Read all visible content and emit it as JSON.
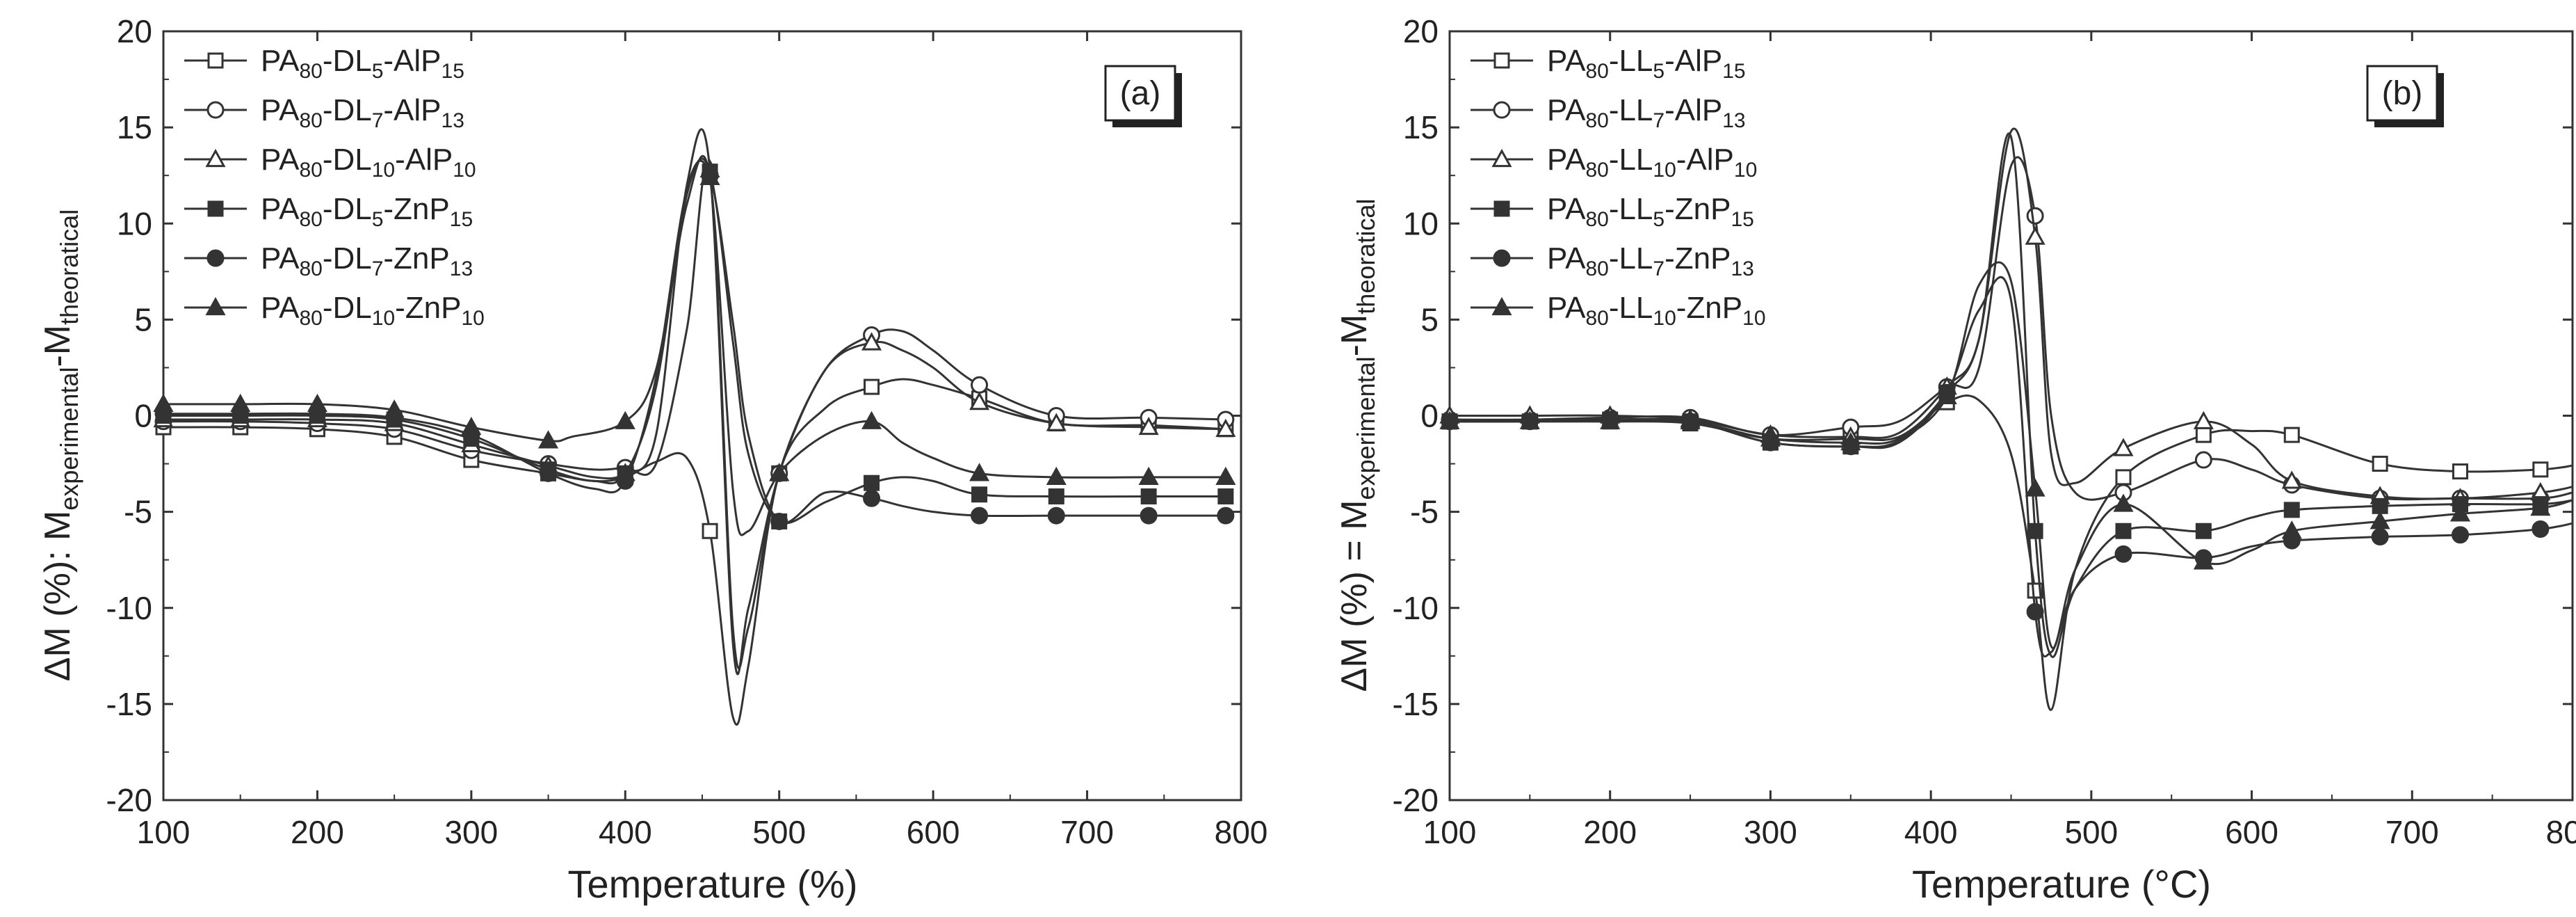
{
  "chart_data": [
    {
      "type": "line",
      "panel_label": "(a)",
      "xlabel": "Temperature (%)",
      "ylabel_parts": {
        "prefix": "ΔM (%): M",
        "sub1": "experimental",
        "mid": "-M",
        "sub2": "theoratical"
      },
      "xlim": [
        100,
        800
      ],
      "ylim": [
        -20,
        20
      ],
      "xticks": [
        100,
        200,
        300,
        400,
        500,
        600,
        700,
        800
      ],
      "yticks": [
        -20,
        -15,
        -10,
        -5,
        0,
        5,
        10,
        15,
        20
      ],
      "grid": false,
      "legend_position": "top-left",
      "series": [
        {
          "legend": {
            "t1": "PA",
            "s1": "80",
            "t2": "-DL",
            "s2": "5",
            "t3": "-AlP",
            "s3": "15"
          },
          "marker": "square-open",
          "x": [
            100,
            150,
            200,
            250,
            300,
            350,
            380,
            400,
            420,
            440,
            455,
            470,
            480,
            500,
            530,
            560,
            580,
            600,
            630,
            680,
            740,
            790
          ],
          "y": [
            -0.6,
            -0.6,
            -0.7,
            -1.1,
            -2.3,
            -3.0,
            -3.4,
            -3.2,
            -2.4,
            -2.2,
            -6.0,
            -15.7,
            -13.0,
            -3.0,
            0.4,
            1.5,
            1.9,
            1.6,
            0.9,
            -0.4,
            -0.5,
            -0.7
          ]
        },
        {
          "legend": {
            "t1": "PA",
            "s1": "80",
            "t2": "-DL",
            "s2": "7",
            "t3": "-AlP",
            "s3": "13"
          },
          "marker": "circle-open",
          "x": [
            100,
            150,
            200,
            250,
            300,
            350,
            380,
            400,
            420,
            440,
            455,
            470,
            480,
            500,
            530,
            560,
            580,
            600,
            630,
            680,
            740,
            790
          ],
          "y": [
            -0.3,
            -0.3,
            -0.4,
            -0.7,
            -1.8,
            -2.5,
            -2.8,
            -2.7,
            -2.5,
            4.5,
            12.5,
            -11.1,
            -11.0,
            -3.0,
            2.4,
            4.2,
            4.4,
            3.4,
            1.6,
            0.0,
            -0.1,
            -0.2
          ]
        },
        {
          "legend": {
            "t1": "PA",
            "s1": "80",
            "t2": "-DL",
            "s2": "10",
            "t3": "-AlP",
            "s3": "10"
          },
          "marker": "triangle-open",
          "x": [
            100,
            150,
            200,
            250,
            300,
            350,
            380,
            400,
            420,
            440,
            455,
            470,
            480,
            500,
            530,
            560,
            580,
            600,
            630,
            680,
            740,
            790
          ],
          "y": [
            -0.2,
            -0.2,
            -0.2,
            -0.4,
            -1.5,
            -2.6,
            -3.2,
            -3.0,
            -1.0,
            12.0,
            12.8,
            -11.9,
            -10.0,
            -3.0,
            2.4,
            3.8,
            3.4,
            2.5,
            0.7,
            -0.4,
            -0.6,
            -0.7
          ]
        },
        {
          "legend": {
            "t1": "PA",
            "s1": "80",
            "t2": "-DL",
            "s2": "5",
            "t3": "-ZnP",
            "s3": "15"
          },
          "marker": "square-filled",
          "x": [
            100,
            150,
            200,
            250,
            300,
            350,
            380,
            400,
            420,
            440,
            455,
            470,
            480,
            500,
            530,
            560,
            580,
            600,
            630,
            680,
            740,
            790
          ],
          "y": [
            0.0,
            0.0,
            0.0,
            -0.2,
            -1.2,
            -2.8,
            -3.4,
            -3.0,
            1.5,
            11.5,
            12.7,
            3.8,
            -2.0,
            -5.5,
            -4.5,
            -3.5,
            -3.2,
            -3.4,
            -4.1,
            -4.2,
            -4.2,
            -4.2
          ]
        },
        {
          "legend": {
            "t1": "PA",
            "s1": "80",
            "t2": "-DL",
            "s2": "7",
            "t3": "-ZnP",
            "s3": "13"
          },
          "marker": "circle-filled",
          "x": [
            100,
            150,
            200,
            250,
            300,
            350,
            380,
            400,
            420,
            440,
            455,
            470,
            480,
            500,
            530,
            560,
            580,
            600,
            630,
            680,
            740,
            790
          ],
          "y": [
            0.1,
            0.1,
            0.1,
            -0.1,
            -1.0,
            -3.0,
            -3.8,
            -3.4,
            2.0,
            11.8,
            12.5,
            4.8,
            -1.0,
            -5.5,
            -4.0,
            -4.3,
            -4.7,
            -5.0,
            -5.2,
            -5.2,
            -5.2,
            -5.2
          ]
        },
        {
          "legend": {
            "t1": "PA",
            "s1": "80",
            "t2": "-DL",
            "s2": "10",
            "t3": "-ZnP",
            "s3": "10"
          },
          "marker": "triangle-filled",
          "x": [
            100,
            150,
            200,
            250,
            300,
            350,
            365,
            400,
            420,
            440,
            455,
            470,
            480,
            500,
            530,
            560,
            580,
            600,
            630,
            680,
            740,
            790
          ],
          "y": [
            0.6,
            0.6,
            0.6,
            0.3,
            -0.6,
            -1.3,
            -1.1,
            -0.3,
            2.4,
            11.0,
            12.4,
            -3.9,
            -6.0,
            -3.0,
            -1.0,
            -0.3,
            -1.4,
            -2.2,
            -3.0,
            -3.2,
            -3.2,
            -3.2
          ]
        }
      ]
    },
    {
      "type": "line",
      "panel_label": "(b)",
      "xlabel": "Temperature (°C)",
      "ylabel_parts": {
        "prefix": "ΔM (%) = M",
        "sub1": "experimental",
        "mid": "-M",
        "sub2": "theoratical"
      },
      "xlim": [
        100,
        800
      ],
      "ylim": [
        -20,
        20
      ],
      "xticks": [
        100,
        200,
        300,
        400,
        500,
        600,
        700,
        800
      ],
      "yticks": [
        -20,
        -15,
        -10,
        -5,
        0,
        5,
        10,
        15,
        20
      ],
      "grid": false,
      "legend_position": "top-left",
      "series": [
        {
          "legend": {
            "t1": "PA",
            "s1": "80",
            "t2": "-LL",
            "s2": "5",
            "t3": "-AlP",
            "s3": "15"
          },
          "marker": "square-open",
          "x": [
            100,
            150,
            200,
            250,
            300,
            350,
            380,
            410,
            430,
            450,
            465,
            475,
            490,
            520,
            570,
            600,
            625,
            680,
            730,
            780,
            800
          ],
          "y": [
            -0.3,
            -0.3,
            -0.3,
            -0.4,
            -1.2,
            -1.2,
            -1.1,
            0.7,
            0.8,
            -2.0,
            -9.1,
            -15.3,
            -8.0,
            -3.2,
            -1.0,
            -0.8,
            -1.0,
            -2.5,
            -2.9,
            -2.8,
            -2.6
          ]
        },
        {
          "legend": {
            "t1": "PA",
            "s1": "80",
            "t2": "-LL",
            "s2": "7",
            "t3": "-AlP",
            "s3": "13"
          },
          "marker": "circle-open",
          "x": [
            100,
            150,
            200,
            250,
            300,
            350,
            380,
            410,
            430,
            450,
            465,
            475,
            490,
            520,
            570,
            600,
            625,
            680,
            730,
            780,
            800
          ],
          "y": [
            -0.2,
            -0.2,
            -0.1,
            -0.1,
            -1.0,
            -0.6,
            -0.3,
            1.5,
            2.5,
            13.0,
            10.4,
            0.0,
            -4.0,
            -4.0,
            -2.3,
            -2.8,
            -3.6,
            -4.3,
            -4.3,
            -4.3,
            -4.0
          ]
        },
        {
          "legend": {
            "t1": "PA",
            "s1": "80",
            "t2": "-LL",
            "s2": "10",
            "t3": "-AlP",
            "s3": "10"
          },
          "marker": "triangle-open",
          "x": [
            100,
            150,
            200,
            250,
            300,
            350,
            380,
            410,
            430,
            450,
            465,
            475,
            490,
            520,
            570,
            600,
            625,
            680,
            730,
            780,
            800
          ],
          "y": [
            0.0,
            0.0,
            0.0,
            -0.2,
            -1.0,
            -1.1,
            -0.9,
            1.5,
            4.0,
            14.8,
            9.3,
            -2.0,
            -3.5,
            -1.7,
            -0.3,
            -1.5,
            -3.4,
            -4.2,
            -4.3,
            -4.0,
            -3.7
          ]
        },
        {
          "legend": {
            "t1": "PA",
            "s1": "80",
            "t2": "-LL",
            "s2": "5",
            "t3": "-ZnP",
            "s3": "15"
          },
          "marker": "square-filled",
          "x": [
            100,
            150,
            200,
            250,
            300,
            350,
            380,
            410,
            430,
            450,
            465,
            475,
            490,
            520,
            570,
            600,
            625,
            680,
            730,
            780,
            800
          ],
          "y": [
            -0.3,
            -0.3,
            -0.2,
            -0.3,
            -1.4,
            -1.6,
            -1.3,
            1.2,
            4.0,
            14.5,
            -6.0,
            -12.5,
            -9.0,
            -6.0,
            -6.0,
            -5.3,
            -4.9,
            -4.7,
            -4.6,
            -4.6,
            -4.4
          ]
        },
        {
          "legend": {
            "t1": "PA",
            "s1": "80",
            "t2": "-LL",
            "s2": "7",
            "t3": "-ZnP",
            "s3": "13"
          },
          "marker": "circle-filled",
          "x": [
            100,
            150,
            200,
            250,
            300,
            350,
            380,
            410,
            430,
            450,
            465,
            475,
            490,
            520,
            570,
            600,
            625,
            680,
            730,
            780,
            800
          ],
          "y": [
            -0.3,
            -0.3,
            -0.2,
            -0.3,
            -1.4,
            -1.6,
            -1.4,
            1.2,
            5.5,
            6.0,
            -10.2,
            -12.3,
            -9.0,
            -7.2,
            -7.4,
            -6.8,
            -6.5,
            -6.3,
            -6.2,
            -5.9,
            -5.6
          ]
        },
        {
          "legend": {
            "t1": "PA",
            "s1": "80",
            "t2": "-LL",
            "s2": "10",
            "t3": "-ZnP",
            "s3": "10"
          },
          "marker": "triangle-filled",
          "x": [
            100,
            150,
            200,
            250,
            300,
            350,
            380,
            410,
            430,
            450,
            465,
            475,
            490,
            520,
            570,
            600,
            625,
            680,
            730,
            780,
            800
          ],
          "y": [
            -0.3,
            -0.3,
            -0.3,
            -0.3,
            -1.2,
            -1.4,
            -1.2,
            1.0,
            6.8,
            7.0,
            -3.8,
            -12.0,
            -8.0,
            -4.6,
            -7.6,
            -7.0,
            -6.0,
            -5.5,
            -5.1,
            -4.8,
            -4.4
          ]
        }
      ]
    }
  ]
}
